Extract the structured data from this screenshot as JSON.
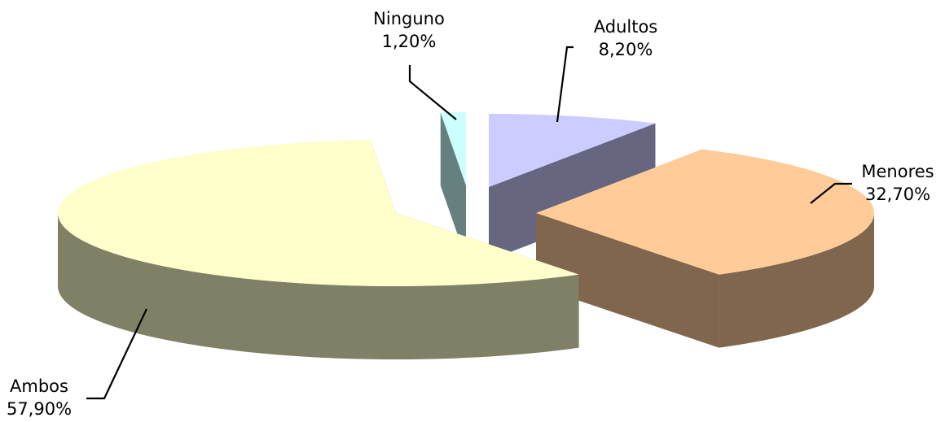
{
  "chart_data": {
    "type": "pie",
    "variant": "3d-exploded",
    "title": "",
    "unit": "%",
    "slices": [
      {
        "label": "Adultos",
        "value": 8.2,
        "value_label": "8,20%",
        "top_color": "#ccccff",
        "side_color": "#666680"
      },
      {
        "label": "Menores",
        "value": 32.7,
        "value_label": "32,70%",
        "top_color": "#ffcc99",
        "side_color": "#80664d"
      },
      {
        "label": "Ambos",
        "value": 57.9,
        "value_label": "57,90%",
        "top_color": "#ffffcc",
        "side_color": "#808066"
      },
      {
        "label": "Ninguno",
        "value": 1.2,
        "value_label": "1,20%",
        "top_color": "#ccffff",
        "side_color": "#668080"
      }
    ],
    "legend": "none",
    "data_labels": "outside-with-leader-lines",
    "background": "#ffffff"
  }
}
